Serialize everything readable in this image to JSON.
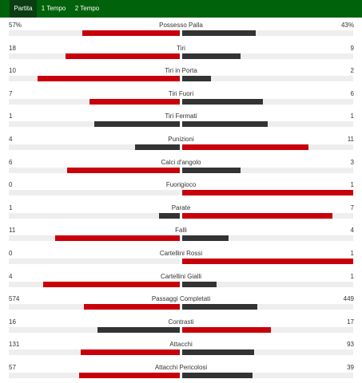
{
  "colors": {
    "header_bg": "#00620a",
    "active_tab_bg": "#0b3d12",
    "red": "#c8000a",
    "dark": "#333333",
    "track": "#eeeeee"
  },
  "tabs": [
    {
      "label": "Partita",
      "active": true
    },
    {
      "label": "1 Tempo",
      "active": false
    },
    {
      "label": "2 Tempo",
      "active": false
    }
  ],
  "stats": [
    {
      "label": "Possesso Palla",
      "left": "57%",
      "right": "43%",
      "left_frac": 0.57,
      "right_frac": 0.43,
      "left_color": "red",
      "right_color": "dark"
    },
    {
      "label": "Tiri",
      "left": "18",
      "right": "9",
      "left_frac": 0.67,
      "right_frac": 0.34,
      "left_color": "red",
      "right_color": "dark"
    },
    {
      "label": "Tiri in Porta",
      "left": "10",
      "right": "2",
      "left_frac": 0.83,
      "right_frac": 0.17,
      "left_color": "red",
      "right_color": "dark"
    },
    {
      "label": "Tiri Fuori",
      "left": "7",
      "right": "6",
      "left_frac": 0.53,
      "right_frac": 0.47,
      "left_color": "red",
      "right_color": "dark"
    },
    {
      "label": "Tiri Fermati",
      "left": "1",
      "right": "1",
      "left_frac": 0.5,
      "right_frac": 0.5,
      "left_color": "dark",
      "right_color": "dark"
    },
    {
      "label": "Punizioni",
      "left": "4",
      "right": "11",
      "left_frac": 0.26,
      "right_frac": 0.74,
      "left_color": "dark",
      "right_color": "red"
    },
    {
      "label": "Calci d'angolo",
      "left": "6",
      "right": "3",
      "left_frac": 0.66,
      "right_frac": 0.34,
      "left_color": "red",
      "right_color": "dark"
    },
    {
      "label": "Fuorigioco",
      "left": "0",
      "right": "1",
      "left_frac": 0.0,
      "right_frac": 1.0,
      "left_color": "dark",
      "right_color": "red"
    },
    {
      "label": "Parate",
      "left": "1",
      "right": "7",
      "left_frac": 0.12,
      "right_frac": 0.88,
      "left_color": "dark",
      "right_color": "red"
    },
    {
      "label": "Falli",
      "left": "11",
      "right": "4",
      "left_frac": 0.73,
      "right_frac": 0.27,
      "left_color": "red",
      "right_color": "dark"
    },
    {
      "label": "Cartellini Rossi",
      "left": "0",
      "right": "1",
      "left_frac": 0.0,
      "right_frac": 1.0,
      "left_color": "dark",
      "right_color": "red"
    },
    {
      "label": "Cartellini Gialli",
      "left": "4",
      "right": "1",
      "left_frac": 0.8,
      "right_frac": 0.2,
      "left_color": "red",
      "right_color": "dark"
    },
    {
      "label": "Passaggi Completati",
      "left": "574",
      "right": "449",
      "left_frac": 0.56,
      "right_frac": 0.44,
      "left_color": "red",
      "right_color": "dark"
    },
    {
      "label": "Contrasti",
      "left": "16",
      "right": "17",
      "left_frac": 0.48,
      "right_frac": 0.52,
      "left_color": "dark",
      "right_color": "red"
    },
    {
      "label": "Attacchi",
      "left": "131",
      "right": "93",
      "left_frac": 0.58,
      "right_frac": 0.42,
      "left_color": "red",
      "right_color": "dark"
    },
    {
      "label": "Attacchi Pericolosi",
      "left": "57",
      "right": "39",
      "left_frac": 0.59,
      "right_frac": 0.41,
      "left_color": "red",
      "right_color": "dark"
    }
  ]
}
